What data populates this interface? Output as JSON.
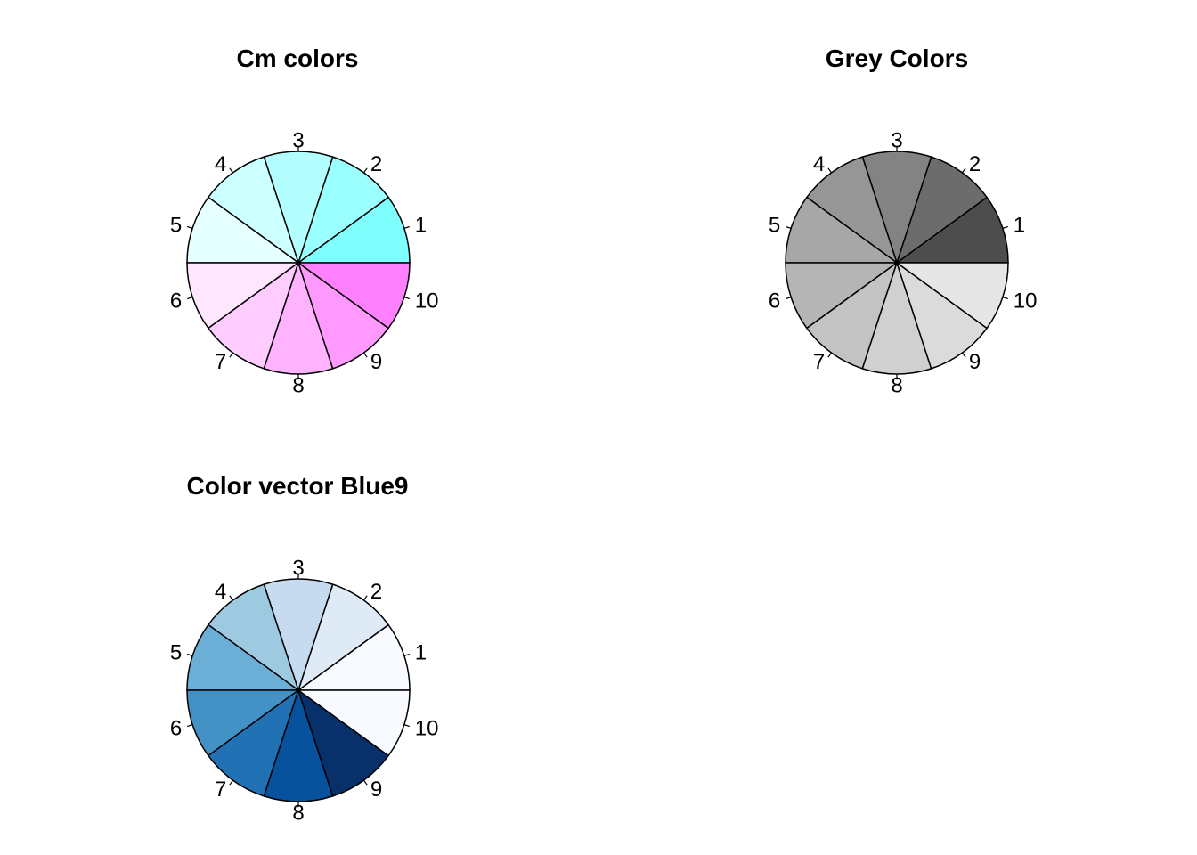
{
  "chart_data": [
    {
      "type": "pie",
      "title": "Cm colors",
      "labels": [
        "1",
        "2",
        "3",
        "4",
        "5",
        "6",
        "7",
        "8",
        "9",
        "10"
      ],
      "values": [
        1,
        1,
        1,
        1,
        1,
        1,
        1,
        1,
        1,
        1
      ],
      "colors": [
        "#80FFFF",
        "#99FFFF",
        "#B3FFFF",
        "#CCFFFF",
        "#E6FFFF",
        "#FFE6FF",
        "#FFCCFF",
        "#FFB3FF",
        "#FF99FF",
        "#FF80FF"
      ]
    },
    {
      "type": "pie",
      "title": "Grey Colors",
      "labels": [
        "1",
        "2",
        "3",
        "4",
        "5",
        "6",
        "7",
        "8",
        "9",
        "10"
      ],
      "values": [
        1,
        1,
        1,
        1,
        1,
        1,
        1,
        1,
        1,
        1
      ],
      "colors": [
        "#4D4D4D",
        "#6C6C6C",
        "#838383",
        "#969696",
        "#A7A7A7",
        "#B5B5B5",
        "#C3C3C3",
        "#D0D0D0",
        "#DBDBDB",
        "#E6E6E6"
      ]
    },
    {
      "type": "pie",
      "title": "Color vector Blue9",
      "labels": [
        "1",
        "2",
        "3",
        "4",
        "5",
        "6",
        "7",
        "8",
        "9",
        "10"
      ],
      "values": [
        1,
        1,
        1,
        1,
        1,
        1,
        1,
        1,
        1,
        1
      ],
      "colors": [
        "#F7FBFF",
        "#DEEBF7",
        "#C6DBEF",
        "#9ECAE1",
        "#6BAED6",
        "#4292C6",
        "#2171B5",
        "#08519C",
        "#08306B",
        "#F7FBFF"
      ]
    }
  ]
}
